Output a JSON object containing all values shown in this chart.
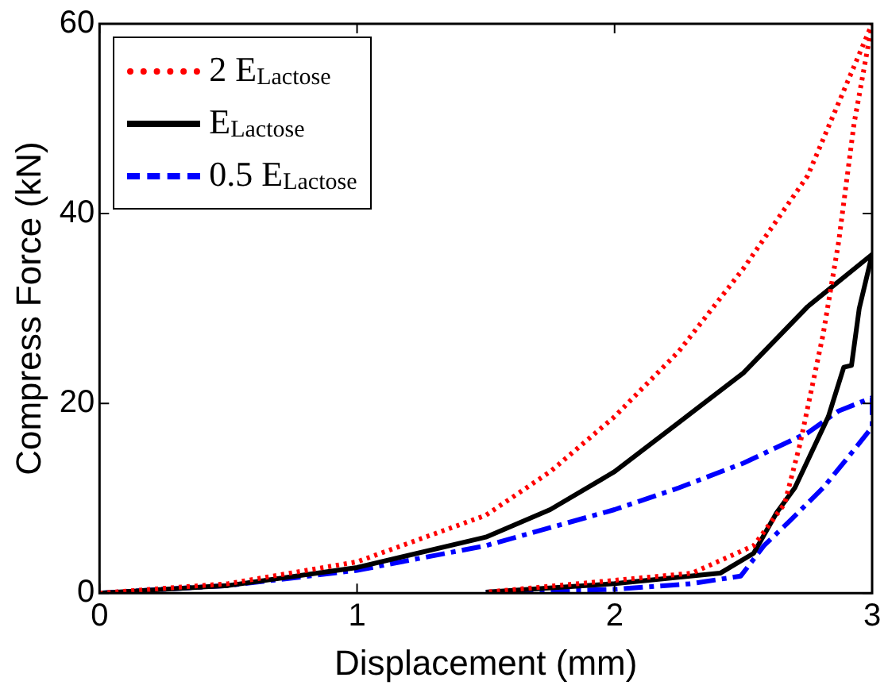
{
  "chart_data": {
    "type": "line",
    "xlabel": "Displacement (mm)",
    "ylabel": "Compress Force (kN)",
    "xlim": [
      0,
      3
    ],
    "ylim": [
      0,
      60
    ],
    "xticks": [
      0,
      1,
      2,
      3
    ],
    "yticks": [
      0,
      20,
      40,
      60
    ],
    "grid": false,
    "legend": "top left",
    "marker": "none",
    "series": [
      {
        "name": "2 E$_{Lactose}$",
        "color": "#ff0000",
        "line_style": "dotted",
        "x": [
          0,
          0.5,
          1,
          1.5,
          1.75,
          2,
          2.25,
          2.5,
          2.75,
          3,
          2.93,
          2.87,
          2.81,
          2.72,
          2.66,
          2.54,
          2.3,
          1.98,
          1.5
        ],
        "values": [
          0,
          1,
          3.3,
          8.2,
          12.8,
          18.6,
          25.5,
          34.2,
          44,
          60,
          49.5,
          37,
          27.3,
          15.7,
          9.4,
          5,
          2.1,
          1.3,
          0.1
        ]
      },
      {
        "name": "E$_{Lactose}$",
        "color": "#000000",
        "line_style": "solid",
        "x": [
          0,
          0.5,
          1,
          1.5,
          1.75,
          2,
          2.25,
          2.5,
          2.75,
          3,
          2.95,
          2.92,
          2.89,
          2.83,
          2.74,
          2.7,
          2.63,
          2.54,
          2.41,
          2,
          1.5
        ],
        "values": [
          0,
          0.8,
          2.7,
          5.9,
          8.8,
          12.8,
          18,
          23.2,
          30.2,
          35.7,
          30,
          24,
          23.8,
          18.6,
          13.4,
          11.1,
          8.5,
          4.2,
          2.1,
          1,
          0.1
        ]
      },
      {
        "name": "0.5 E$_{Lactose}$",
        "color": "#0000ff",
        "line_style": "dashed",
        "x": [
          0,
          0.5,
          1,
          1.5,
          2,
          2.25,
          2.5,
          2.75,
          2.87,
          3,
          3,
          2.93,
          2.81,
          2.68,
          2.58,
          2.49,
          2.3,
          2,
          1.5
        ],
        "values": [
          0,
          0.8,
          2.4,
          5,
          8.8,
          11.1,
          13.7,
          16.9,
          19.2,
          20.6,
          17.5,
          15.1,
          11.1,
          7.6,
          5,
          1.8,
          1,
          0.4,
          0.1
        ]
      }
    ]
  }
}
